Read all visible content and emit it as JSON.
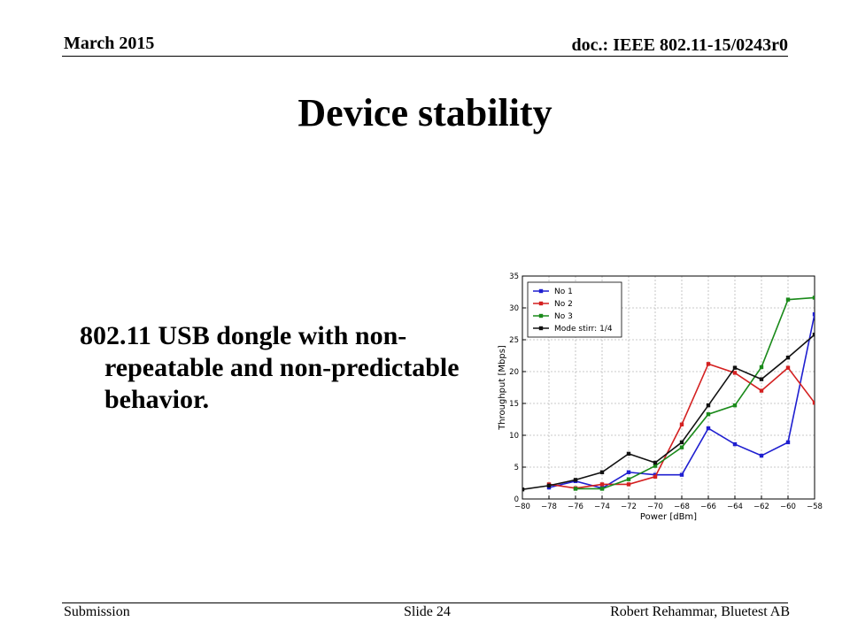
{
  "header": {
    "date": "March 2015",
    "doc": "doc.: IEEE 802.11-15/0243r0"
  },
  "slide": {
    "title": "Device stability",
    "body": "802.11 USB dongle with non-repeatable and non-predictable behavior."
  },
  "footer": {
    "left": "Submission",
    "center": "Slide 24",
    "right": "Robert Rehammar, Bluetest AB"
  },
  "chart_data": {
    "type": "line",
    "title": "",
    "xlabel": "Power [dBm]",
    "ylabel": "Throughput [Mbps]",
    "xlim": [
      -80,
      -58
    ],
    "ylim": [
      0,
      35
    ],
    "xticks": [
      -80,
      -78,
      -76,
      -74,
      -72,
      -70,
      -68,
      -66,
      -64,
      -62,
      -60,
      -58
    ],
    "xtick_labels": [
      "−80",
      "−78",
      "−76",
      "−74",
      "−72",
      "−70",
      "−68",
      "−66",
      "−64",
      "−62",
      "−60",
      "−58"
    ],
    "yticks": [
      0,
      5,
      10,
      15,
      20,
      25,
      30,
      35
    ],
    "grid": true,
    "legend": "top-left",
    "series": [
      {
        "name": "No 1",
        "color": "#1f1fd0",
        "x": [
          -78,
          -76,
          -74,
          -72,
          -70,
          -68,
          -66,
          -64,
          -62,
          -60,
          -58
        ],
        "y": [
          1.8,
          2.8,
          1.7,
          4.2,
          3.8,
          3.8,
          11.1,
          8.6,
          6.8,
          8.9,
          29.0
        ]
      },
      {
        "name": "No 2",
        "color": "#d42020",
        "x": [
          -78,
          -76,
          -74,
          -72,
          -70,
          -68,
          -66,
          -64,
          -62,
          -60,
          -58
        ],
        "y": [
          2.3,
          1.7,
          2.3,
          2.3,
          3.5,
          11.7,
          21.2,
          19.8,
          17.0,
          20.6,
          15.1
        ]
      },
      {
        "name": "No 3",
        "color": "#1a8a1a",
        "x": [
          -76,
          -74,
          -72,
          -70,
          -68,
          -66,
          -64,
          -62,
          -60,
          -58
        ],
        "y": [
          1.6,
          1.6,
          3.1,
          5.2,
          8.1,
          13.3,
          14.7,
          20.7,
          31.3,
          31.6
        ]
      },
      {
        "name": "Mode stirr: 1/4",
        "color": "#111111",
        "x": [
          -80,
          -78,
          -76,
          -74,
          -72,
          -70,
          -68,
          -66,
          -64,
          -62,
          -60,
          -58
        ],
        "y": [
          1.5,
          2.1,
          3.0,
          4.2,
          7.1,
          5.7,
          8.9,
          14.7,
          20.6,
          18.8,
          22.2,
          25.8
        ]
      }
    ]
  }
}
